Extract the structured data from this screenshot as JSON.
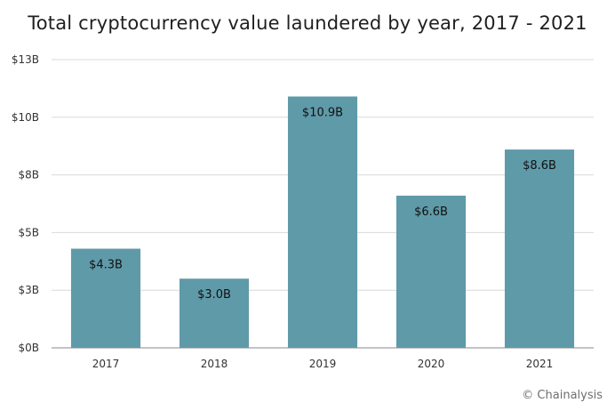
{
  "chart_data": {
    "type": "bar",
    "title": "Total cryptocurrency value laundered by year, 2017 - 2021",
    "categories": [
      "2017",
      "2018",
      "2019",
      "2020",
      "2021"
    ],
    "values": [
      4.3,
      3.0,
      10.9,
      6.6,
      8.6
    ],
    "data_labels": [
      "$4.3B",
      "$3.0B",
      "$10.9B",
      "$6.6B",
      "$8.6B"
    ],
    "y_ticks": [
      0,
      2.5,
      5,
      7.5,
      10,
      12.5
    ],
    "y_tick_labels": [
      "$0B",
      "$3B",
      "$5B",
      "$8B",
      "$10B",
      "$13B"
    ],
    "ylim": [
      0,
      12.5
    ],
    "xlabel": "",
    "ylabel": "",
    "grid": true,
    "bar_color": "#5f9aa8"
  },
  "credit": "© Chainalysis"
}
